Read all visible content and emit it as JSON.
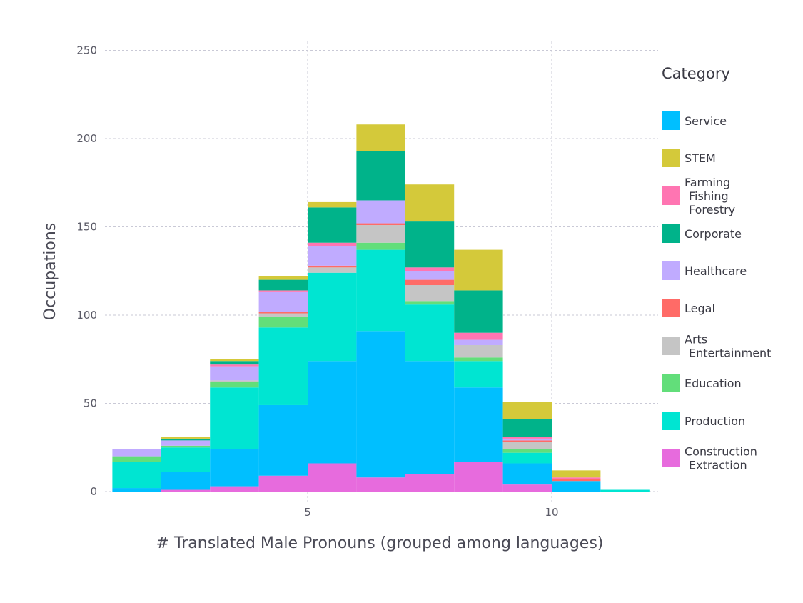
{
  "chart_data": {
    "type": "bar",
    "stacked": true,
    "xlabel": "# Translated Male Pronouns (grouped among languages)",
    "ylabel": "Occupations",
    "xlim": [
      0.25,
      12.25
    ],
    "ylim": [
      0,
      250
    ],
    "xticks": [
      5,
      10
    ],
    "yticks": [
      0,
      50,
      100,
      150,
      200,
      250
    ],
    "grid": true,
    "legend_title": "Category",
    "legend_position": "right",
    "bins": [
      [
        1,
        2
      ],
      [
        2,
        3
      ],
      [
        3,
        4
      ],
      [
        4,
        5
      ],
      [
        5,
        6
      ],
      [
        6,
        7
      ],
      [
        7,
        8
      ],
      [
        8,
        9
      ],
      [
        9,
        10
      ],
      [
        10,
        11
      ],
      [
        11,
        12
      ]
    ],
    "series": [
      {
        "name": "Construction\nExtraction",
        "color": "#E76BDD",
        "values": [
          0,
          1,
          3,
          9,
          16,
          8,
          10,
          17,
          4,
          0,
          0
        ]
      },
      {
        "name": "Service",
        "color": "#00BFFF",
        "values": [
          2,
          10,
          21,
          40,
          58,
          83,
          64,
          42,
          12,
          6,
          0
        ]
      },
      {
        "name": "Production",
        "color": "#00E5D2",
        "values": [
          15,
          14,
          35,
          44,
          50,
          46,
          32,
          15,
          6,
          0,
          1
        ]
      },
      {
        "name": "Education",
        "color": "#62DE7A",
        "values": [
          3,
          1,
          3,
          6,
          0,
          4,
          2,
          2,
          2,
          0,
          0
        ]
      },
      {
        "name": "Arts\nEntertainment",
        "color": "#C5C5C5",
        "values": [
          0,
          0,
          1,
          2,
          3,
          10,
          9,
          7,
          4,
          0,
          0
        ]
      },
      {
        "name": "Legal",
        "color": "#FF6B67",
        "values": [
          0,
          0,
          0,
          1,
          1,
          1,
          3,
          0,
          1,
          1,
          0
        ]
      },
      {
        "name": "Healthcare",
        "color": "#C0ABFF",
        "values": [
          4,
          3,
          8,
          11,
          11,
          13,
          5,
          3,
          1,
          0,
          0
        ]
      },
      {
        "name": "Farming\nFishing\nForestry",
        "color": "#FF75B2",
        "values": [
          0,
          0,
          1,
          1,
          2,
          0,
          2,
          4,
          1,
          1,
          0
        ]
      },
      {
        "name": "Corporate",
        "color": "#00B38A",
        "values": [
          0,
          1,
          2,
          6,
          20,
          28,
          26,
          24,
          10,
          0,
          0
        ]
      },
      {
        "name": "STEM",
        "color": "#D4C93A",
        "values": [
          0,
          1,
          1,
          2,
          3,
          15,
          21,
          23,
          10,
          4,
          0
        ]
      }
    ],
    "legend_order": [
      "Service",
      "STEM",
      "Farming\nFishing\nForestry",
      "Corporate",
      "Healthcare",
      "Legal",
      "Arts\nEntertainment",
      "Education",
      "Production",
      "Construction\nExtraction"
    ]
  }
}
